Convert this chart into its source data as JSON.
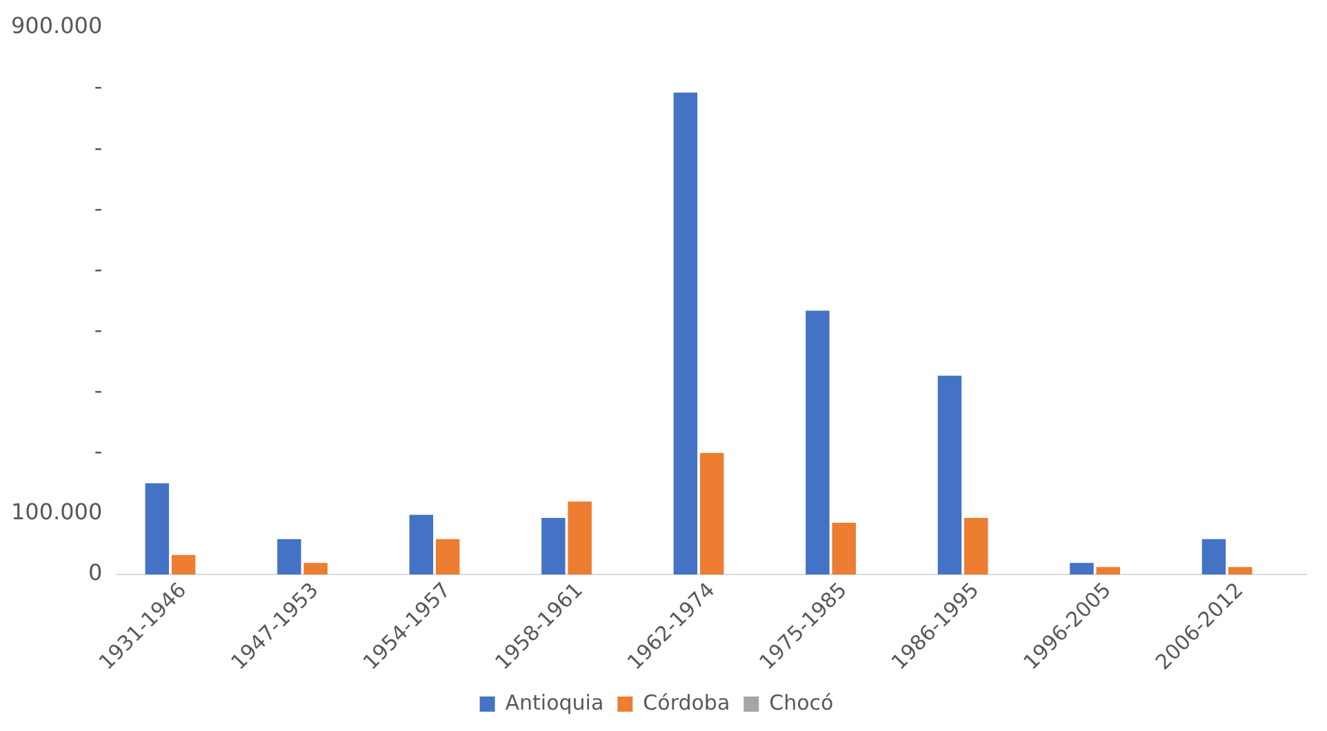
{
  "chart_data": {
    "type": "bar",
    "categories": [
      "1931-1946",
      "1947-1953",
      "1954-1957",
      "1958-1961",
      "1962-1974",
      "1975-1985",
      "1986-1995",
      "1996-2005",
      "2006-2012"
    ],
    "series": [
      {
        "name": "Antioquia",
        "color": "#4472c4",
        "values": [
          150000,
          58000,
          98000,
          93000,
          793000,
          434000,
          327000,
          19000,
          58000
        ]
      },
      {
        "name": "Córdoba",
        "color": "#ed7d31",
        "values": [
          32000,
          19000,
          58000,
          120000,
          200000,
          85000,
          93000,
          12000,
          12000
        ]
      },
      {
        "name": "Chocó",
        "color": "#a5a5a5",
        "values": [
          0,
          0,
          0,
          0,
          0,
          0,
          0,
          0,
          0
        ]
      }
    ],
    "ylim": [
      0,
      900000
    ],
    "yticks": [
      0,
      {
        "value": 100000,
        "label": "100.000"
      },
      {
        "value": 200000,
        "label": "-"
      },
      {
        "value": 300000,
        "label": "-"
      },
      {
        "value": 400000,
        "label": "-"
      },
      {
        "value": 500000,
        "label": "-"
      },
      {
        "value": 600000,
        "label": "-"
      },
      {
        "value": 700000,
        "label": "-"
      },
      {
        "value": 800000,
        "label": "-"
      },
      {
        "value": 900000,
        "label": "900.000"
      }
    ],
    "grid": false,
    "legend": "bottom"
  }
}
